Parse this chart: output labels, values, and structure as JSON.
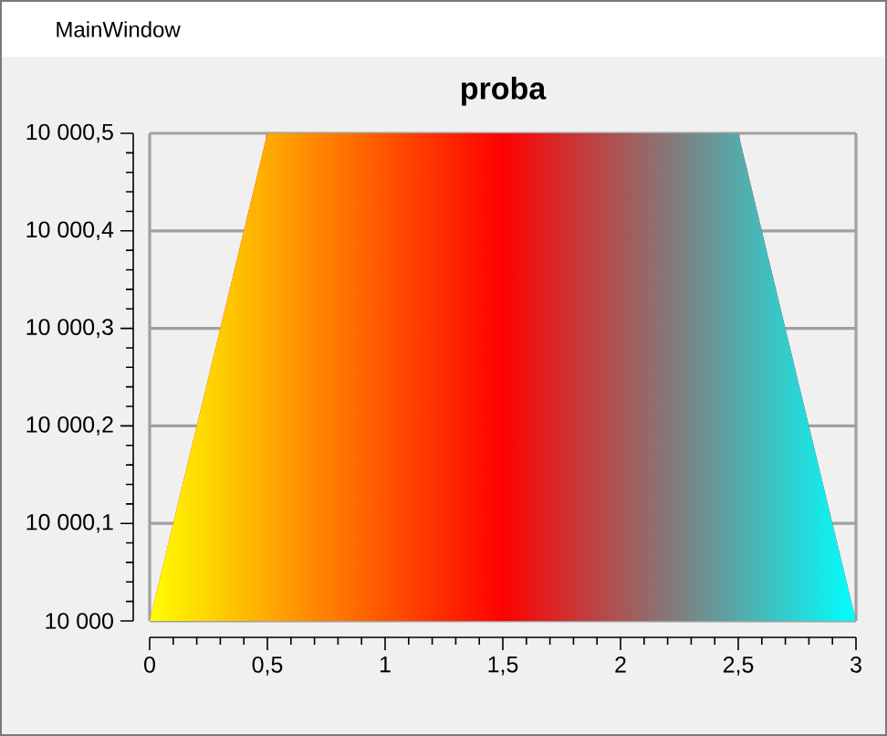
{
  "chart_data": {
    "type": "area",
    "title": "proba",
    "annotations": [
      "MainWindow"
    ],
    "x": [
      0,
      0.5,
      1.5,
      2.5,
      3
    ],
    "series": [
      {
        "values": [
          10000,
          10000.5,
          10000.5,
          10000.5,
          10000
        ],
        "colors": [
          "#ffff00",
          "#ffaa00",
          "#ff0000",
          "#55aaaa",
          "#00ffff"
        ]
      }
    ],
    "xlim": [
      0,
      3
    ],
    "ylim": [
      10000,
      10000.5
    ],
    "xticks": [
      0,
      {
        "value": 0.1,
        "label": null
      },
      {
        "value": 0.2,
        "label": null
      },
      {
        "value": 0.3,
        "label": null
      },
      {
        "value": 0.4,
        "label": null
      },
      {
        "value": 0.5,
        "label": "0,5"
      },
      {
        "value": 0.6,
        "label": null
      },
      {
        "value": 0.7,
        "label": null
      },
      {
        "value": 0.8,
        "label": null
      },
      {
        "value": 0.9,
        "label": null
      },
      1,
      {
        "value": 1.1,
        "label": null
      },
      {
        "value": 1.2,
        "label": null
      },
      {
        "value": 1.3,
        "label": null
      },
      {
        "value": 1.4,
        "label": null
      },
      {
        "value": 1.5,
        "label": "1,5"
      },
      {
        "value": 1.6,
        "label": null
      },
      {
        "value": 1.7,
        "label": null
      },
      {
        "value": 1.8,
        "label": null
      },
      {
        "value": 1.9,
        "label": null
      },
      2,
      {
        "value": 2.1,
        "label": null
      },
      {
        "value": 2.2,
        "label": null
      },
      {
        "value": 2.3,
        "label": null
      },
      {
        "value": 2.4,
        "label": null
      },
      {
        "value": 2.5,
        "label": "2,5"
      },
      {
        "value": 2.6,
        "label": null
      },
      {
        "value": 2.7,
        "label": null
      },
      {
        "value": 2.8,
        "label": null
      },
      {
        "value": 2.9,
        "label": null
      },
      3
    ],
    "yticks": [
      {
        "value": 10000,
        "label": "10 000"
      },
      {
        "value": 10000.02,
        "label": null
      },
      {
        "value": 10000.04,
        "label": null
      },
      {
        "value": 10000.06,
        "label": null
      },
      {
        "value": 10000.08,
        "label": null
      },
      {
        "value": 10000.1,
        "label": "10 000,1"
      },
      {
        "value": 10000.12,
        "label": null
      },
      {
        "value": 10000.14,
        "label": null
      },
      {
        "value": 10000.16,
        "label": null
      },
      {
        "value": 10000.18,
        "label": null
      },
      {
        "value": 10000.2,
        "label": "10 000,2"
      },
      {
        "value": 10000.22,
        "label": null
      },
      {
        "value": 10000.24,
        "label": null
      },
      {
        "value": 10000.26,
        "label": null
      },
      {
        "value": 10000.28,
        "label": null
      },
      {
        "value": 10000.3,
        "label": "10 000,3"
      },
      {
        "value": 10000.32,
        "label": null
      },
      {
        "value": 10000.34,
        "label": null
      },
      {
        "value": 10000.36,
        "label": null
      },
      {
        "value": 10000.38,
        "label": null
      },
      {
        "value": 10000.4,
        "label": "10 000,4"
      },
      {
        "value": 10000.42,
        "label": null
      },
      {
        "value": 10000.44,
        "label": null
      },
      {
        "value": 10000.46,
        "label": null
      },
      {
        "value": 10000.48,
        "label": null
      },
      {
        "value": 10000.5,
        "label": "10 000,5"
      }
    ],
    "grid": true
  }
}
